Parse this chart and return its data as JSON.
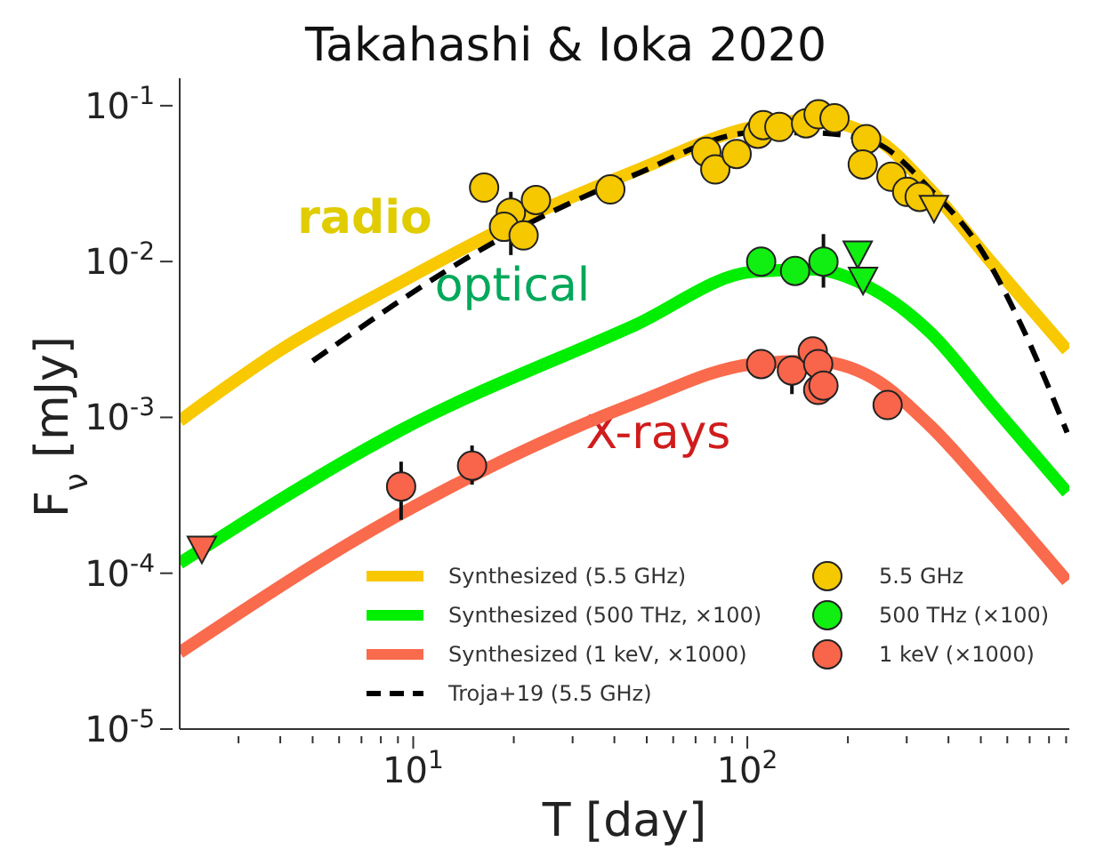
{
  "chart_data": {
    "type": "line",
    "title": "Takahashi & Ioka 2020",
    "xlabel": "T [day]",
    "ylabel": "F$_{ν}$ [mJy]",
    "log": "xy",
    "grid": false,
    "legend": "bottom",
    "xlim": [
      2,
      920
    ],
    "ylim": [
      1e-05,
      0.15
    ],
    "xticks": [
      {
        "value": 3,
        "label": null
      },
      {
        "value": 4,
        "label": null
      },
      {
        "value": 5,
        "label": null
      },
      {
        "value": 6,
        "label": null
      },
      {
        "value": 7,
        "label": null
      },
      {
        "value": 8,
        "label": null
      },
      {
        "value": 9,
        "label": null
      },
      {
        "value": 10,
        "label": "10$^{1}$"
      },
      {
        "value": 20,
        "label": null
      },
      {
        "value": 30,
        "label": null
      },
      {
        "value": 40,
        "label": null
      },
      {
        "value": 50,
        "label": null
      },
      {
        "value": 60,
        "label": null
      },
      {
        "value": 70,
        "label": null
      },
      {
        "value": 80,
        "label": null
      },
      {
        "value": 90,
        "label": null
      },
      {
        "value": 100,
        "label": "10$^{2}$"
      },
      {
        "value": 200,
        "label": null
      },
      {
        "value": 300,
        "label": null
      },
      {
        "value": 400,
        "label": null
      },
      {
        "value": 500,
        "label": null
      },
      {
        "value": 600,
        "label": null
      },
      {
        "value": 700,
        "label": null
      },
      {
        "value": 800,
        "label": null
      },
      {
        "value": 900,
        "label": null
      }
    ],
    "yticks": [
      {
        "value": 1e-05,
        "label": "10$^{-5}$"
      },
      {
        "value": 0.0001,
        "label": "10$^{-4}$"
      },
      {
        "value": 0.001,
        "label": "10$^{-3}$"
      },
      {
        "value": 0.01,
        "label": "10$^{-2}$"
      },
      {
        "value": 0.1,
        "label": "10$^{-1}$"
      }
    ],
    "annotations": [
      "radio",
      "optical",
      "X-rays"
    ],
    "series": [
      {
        "name": "Synthesized (5.5 GHz)",
        "color": "#f8c800",
        "x": [
          2,
          4,
          9,
          20.4,
          46,
          104,
          157,
          236,
          353,
          535,
          906
        ],
        "values": [
          0.00095,
          0.0027,
          0.0072,
          0.018,
          0.038,
          0.073,
          0.081,
          0.064,
          0.029,
          0.01,
          0.0027
        ]
      },
      {
        "name": "Synthesized (500 THz, ×100)",
        "color": "#00ee00",
        "x": [
          2,
          9,
          46,
          104,
          157,
          236,
          353,
          535,
          906
        ],
        "values": [
          0.000116,
          0.00081,
          0.0039,
          0.0086,
          0.0089,
          0.0067,
          0.0035,
          0.00123,
          0.00033
        ]
      },
      {
        "name": "Synthesized (1 keV, ×1000)",
        "color": "#fa6a4c",
        "x": [
          2,
          9,
          46,
          104,
          157,
          236,
          353,
          535,
          906
        ],
        "values": [
          3.1e-05,
          0.000235,
          0.00123,
          0.0022,
          0.0023,
          0.0018,
          0.00088,
          0.00033,
          8.9e-05
        ]
      },
      {
        "name": "Troja+19 (5.5 GHz)",
        "color": "#000000",
        "line_style": "dashed",
        "x": [
          5,
          20.4,
          46,
          104,
          157,
          236,
          353,
          500,
          650,
          906
        ],
        "values": [
          0.0023,
          0.016,
          0.036,
          0.067,
          0.067,
          0.059,
          0.029,
          0.012,
          0.0042,
          0.0008
        ]
      },
      {
        "name": "5.5 GHz",
        "type": "scatter",
        "marker": "circle",
        "color": "#f5c800",
        "x": [
          16.3,
          19.6,
          18.7,
          21.4,
          23.3,
          38.9,
          75.4,
          80.2,
          92.9,
          107.6,
          111.6,
          124.7,
          149.9,
          163.4,
          182.4,
          227,
          221.6,
          270,
          301,
          328
        ],
        "values": [
          0.0298,
          0.0206,
          0.0167,
          0.0147,
          0.0248,
          0.029,
          0.0505,
          0.039,
          0.049,
          0.066,
          0.075,
          0.073,
          0.077,
          0.088,
          0.083,
          0.061,
          0.042,
          0.035,
          0.028,
          0.026
        ],
        "errors": [
          null,
          [
            0.011,
            0.028
          ],
          null,
          null,
          null,
          null,
          null,
          null,
          null,
          null,
          null,
          null,
          null,
          null,
          null,
          null,
          null,
          null,
          null,
          null
        ]
      },
      {
        "name": "500 THz (×100)",
        "type": "scatter",
        "marker": "circle",
        "color": "#11ee11",
        "x": [
          110,
          139,
          169
        ],
        "values": [
          0.01,
          0.0087,
          0.01
        ],
        "errors": [
          null,
          null,
          [
            0.0068,
            0.015
          ]
        ]
      },
      {
        "name": "1 keV (×1000)",
        "type": "scatter",
        "marker": "circle",
        "color": "#f8654a",
        "x": [
          9.2,
          15,
          110,
          136,
          157,
          163,
          163,
          169,
          263
        ],
        "values": [
          0.00036,
          0.00049,
          0.0022,
          0.002,
          0.00265,
          0.0022,
          0.0015,
          0.0016,
          0.0012
        ],
        "errors": [
          [
            0.00022,
            0.00052
          ],
          [
            0.00037,
            0.00066
          ],
          null,
          [
            0.00141,
            0.0023
          ],
          null,
          null,
          null,
          null,
          null
        ]
      },
      {
        "type": "scatter",
        "marker": "triangle",
        "color": "#f5c800",
        "x": [
          362
        ],
        "values": [
          0.022
        ]
      },
      {
        "type": "scatter",
        "marker": "triangle",
        "color": "#11ee11",
        "x": [
          214,
          222
        ],
        "values": [
          0.0112,
          0.0076
        ]
      },
      {
        "type": "scatter",
        "marker": "triangle",
        "color": "#f8654a",
        "x": [
          2.33
        ],
        "values": [
          0.000143
        ]
      }
    ]
  }
}
